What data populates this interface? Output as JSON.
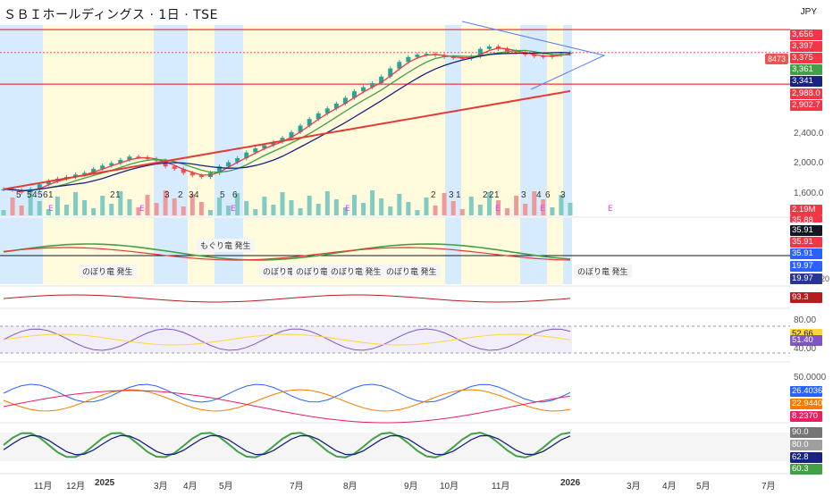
{
  "header": {
    "title": "ＳＢＩホールディングス · 1日 · TSE",
    "currency": "JPY"
  },
  "price_axis": {
    "ticks": [
      "2,400.0",
      "2,000.0",
      "1,600.0"
    ],
    "labels": [
      {
        "text": "3,656",
        "color": "#f23645"
      },
      {
        "text": "3,397",
        "color": "#f23645"
      },
      {
        "text": "3,375",
        "color": "#f23645"
      },
      {
        "text": "3,361",
        "color": "#43a047"
      },
      {
        "text": "3,341",
        "color": "#1a237e"
      },
      {
        "text": "2,988.0",
        "color": "#f23645"
      },
      {
        "text": "2,902.7",
        "color": "#f23645"
      }
    ],
    "crosshair_value": "8473"
  },
  "volume": {
    "label": "2.19M",
    "color": "#f23645"
  },
  "indicator1": {
    "labels": [
      {
        "text": "35.88",
        "color": "#f23645"
      },
      {
        "text": "35.91",
        "color": "#131722"
      },
      {
        "text": "35.91",
        "color": "#f23645"
      },
      {
        "text": "35.91",
        "color": "#2962ff"
      },
      {
        "text": "19.97",
        "color": "#2962ff"
      },
      {
        "text": "19.97",
        "color": "#283593"
      }
    ],
    "tail_value": "20",
    "annotations": [
      "もぐり竜 発生",
      "のぼり竜 発生",
      "のぼり竜",
      "のぼり竜",
      "のぼり竜 発生",
      "のぼり竜 発生",
      "のぼり竜 発生",
      "のぼり竜 発生"
    ]
  },
  "indicator2": {
    "label": "93.3",
    "color": "#b71c1c"
  },
  "rsi": {
    "ticks": [
      "80.00",
      "40.00"
    ],
    "labels": [
      {
        "text": "52.66",
        "color": "#fdd835"
      },
      {
        "text": "51.40",
        "color": "#7e57c2"
      }
    ]
  },
  "dmi": {
    "ticks": [
      "50.0000"
    ],
    "labels": [
      {
        "text": "26.4036",
        "color": "#2962ff"
      },
      {
        "text": "22.9440",
        "color": "#f57c00"
      },
      {
        "text": "8.2370",
        "color": "#e91e63"
      }
    ]
  },
  "stoch": {
    "labels": [
      {
        "text": "90.0",
        "color": "#757575"
      },
      {
        "text": "80.0",
        "color": "#9e9e9e"
      },
      {
        "text": "62.8",
        "color": "#1a237e"
      },
      {
        "text": "60.3",
        "color": "#43a047"
      }
    ]
  },
  "time_axis": [
    "11月",
    "12月",
    "2025",
    "3月",
    "4月",
    "5月",
    "7月",
    "8月",
    "9月",
    "10月",
    "11月",
    "2026",
    "3月",
    "4月",
    "5月",
    "7月"
  ],
  "events": [
    "5",
    "5",
    "4",
    "5",
    "6",
    "1",
    "2",
    "1",
    "3",
    "2",
    "3",
    "4",
    "5",
    "6",
    "2",
    "3",
    "1",
    "2",
    "2",
    "1",
    "3",
    "4",
    "6",
    "3"
  ],
  "earnings_markers": [
    "E",
    "E",
    "E",
    "E",
    "E",
    "E",
    "E"
  ],
  "chart_data": {
    "type": "candlestick",
    "title": "ＳＢＩホールディングス · 1日 · TSE",
    "currency": "JPY",
    "close_series": [
      1700,
      1690,
      1660,
      1700,
      1760,
      1800,
      1830,
      1850,
      1880,
      1900,
      1950,
      1990,
      2020,
      2060,
      2100,
      2090,
      2070,
      2050,
      1980,
      1950,
      1900,
      1870,
      1850,
      1900,
      1980,
      2030,
      2080,
      2150,
      2200,
      2240,
      2280,
      2330,
      2400,
      2480,
      2560,
      2630,
      2690,
      2750,
      2820,
      2900,
      2950,
      3000,
      3080,
      3180,
      3260,
      3320,
      3350,
      3360,
      3340,
      3320,
      3310,
      3300,
      3330,
      3420,
      3450,
      3420,
      3390,
      3380,
      3350,
      3330,
      3320,
      3345,
      3360,
      3375
    ],
    "ma_levels": {
      "ma_short": 3361,
      "ma_mid": 3341,
      "ma_long": 2902.7
    },
    "horizontal_lines": [
      3656,
      2988.0
    ],
    "last_price": 3375,
    "volume_last": "2.19M"
  }
}
